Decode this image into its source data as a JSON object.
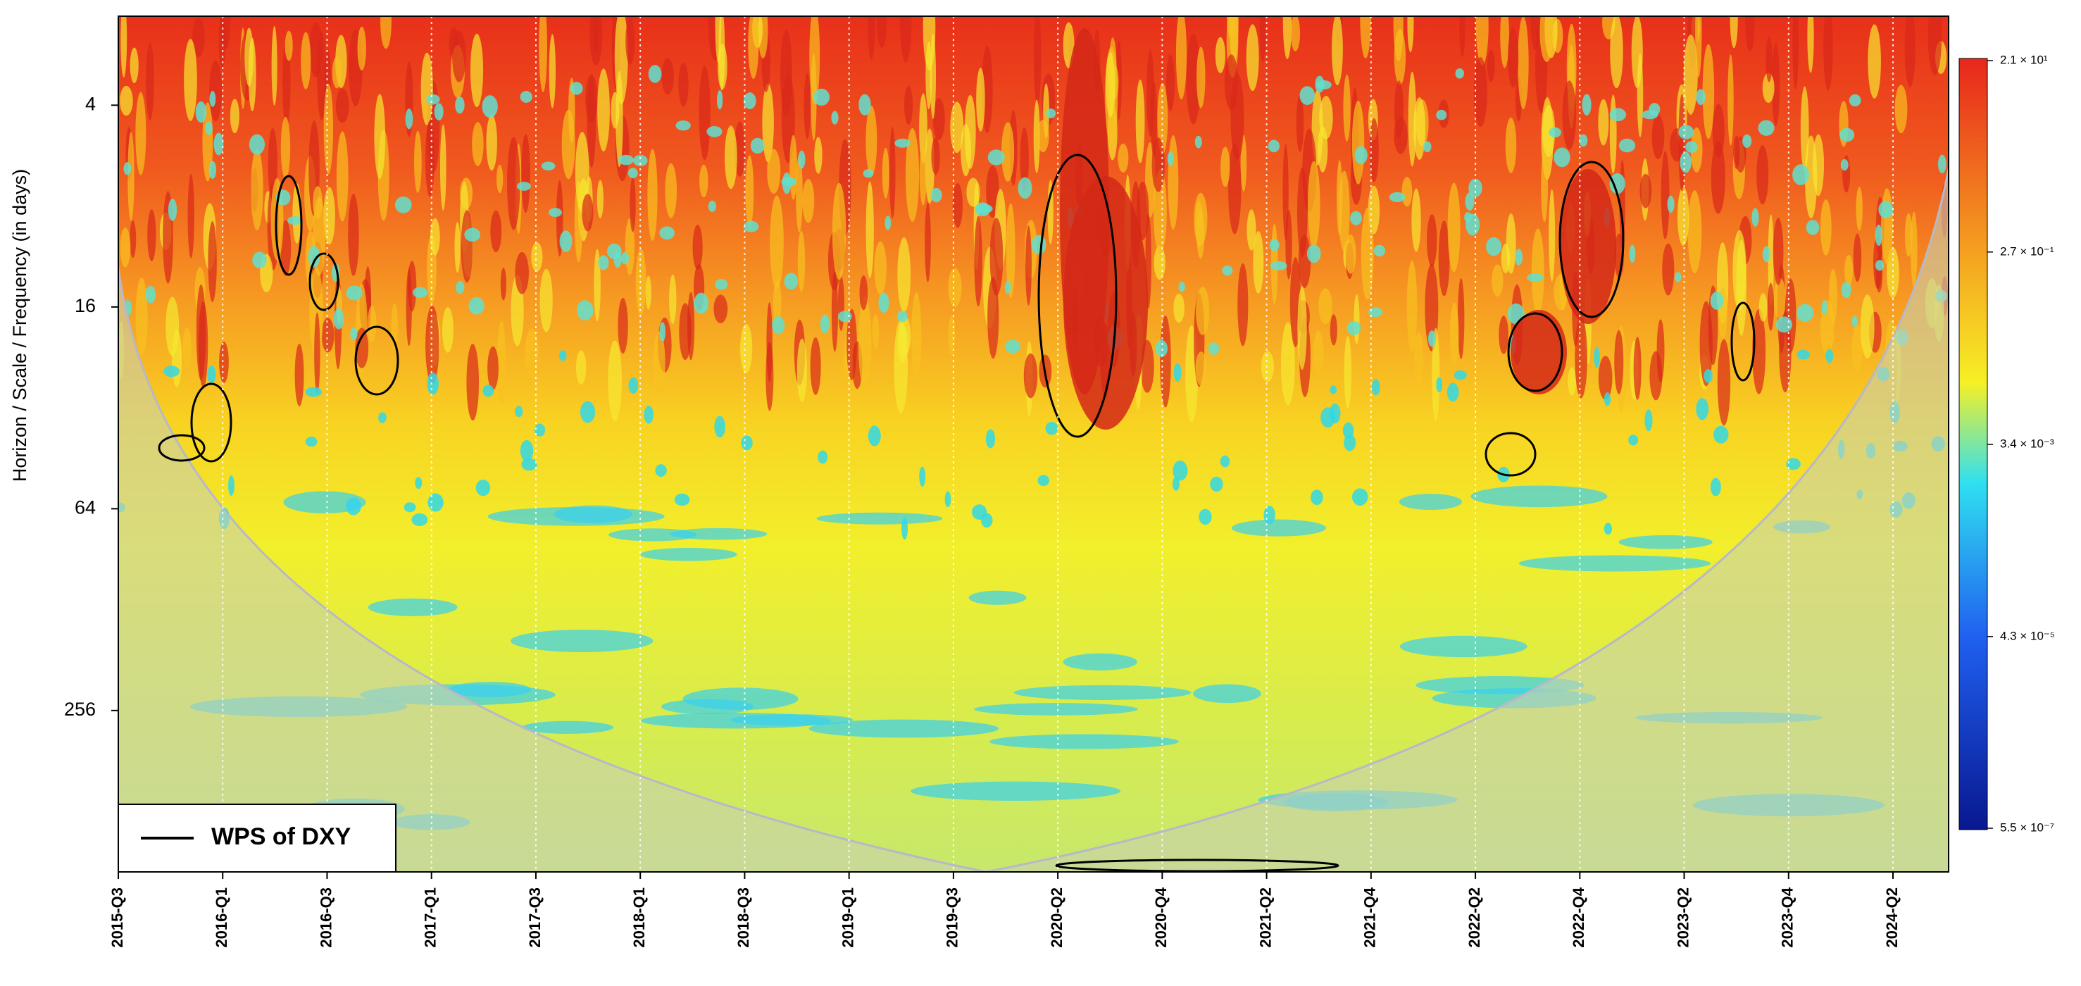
{
  "chart_data": {
    "type": "heatmap",
    "y_label": "Horizon / Scale / Frequency (in days)",
    "categories": [
      "2015-Q3",
      "2016-Q1",
      "2016-Q3",
      "2017-Q1",
      "2017-Q3",
      "2018-Q1",
      "2018-Q3",
      "2019-Q1",
      "2019-Q3",
      "2020-Q2",
      "2020-Q4",
      "2021-Q2",
      "2021-Q4",
      "2022-Q2",
      "2022-Q4",
      "2023-Q2",
      "2023-Q4",
      "2024-Q2"
    ],
    "ylim": [
      2.17,
      776
    ],
    "yticks": [
      4,
      16,
      64,
      256
    ],
    "log_y": true,
    "grid": true,
    "colorbar": {
      "lim": [
        5.5e-07,
        21
      ],
      "log": true,
      "ticks": [
        {
          "value": 21,
          "label": "2.1 × 10¹"
        },
        {
          "value": 0.27,
          "label": "2.7 × 10⁻¹"
        },
        {
          "value": 0.0034,
          "label": "3.4 × 10⁻³"
        },
        {
          "value": 4.3e-05,
          "label": "4.3 × 10⁻⁵"
        },
        {
          "value": 5.5e-07,
          "label": "5.5 × 10⁻⁷"
        }
      ]
    },
    "legend": {
      "label": "WPS of DXY",
      "corner": "bottom-left"
    }
  }
}
